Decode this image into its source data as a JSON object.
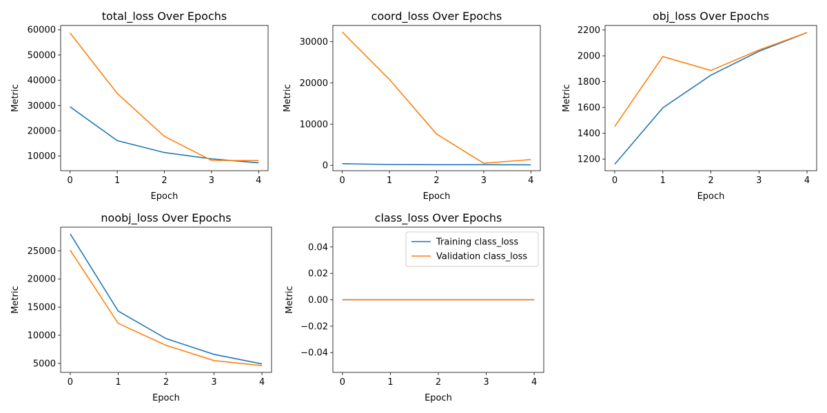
{
  "colors": {
    "training": "#1f77b4",
    "validation": "#ff7f0e",
    "axes": "#000000"
  },
  "chart_data": [
    {
      "type": "line",
      "title": "total_loss Over Epochs",
      "xlabel": "Epoch",
      "ylabel": "Metric",
      "x": [
        0,
        1,
        2,
        3,
        4
      ],
      "xticks": [
        0,
        1,
        2,
        3,
        4
      ],
      "ylim": [
        4200,
        61700
      ],
      "yticks": [
        10000,
        20000,
        30000,
        40000,
        50000,
        60000
      ],
      "series": [
        {
          "values": [
            29500,
            16100,
            11400,
            8900,
            7300
          ],
          "color": "#1f77b4"
        },
        {
          "values": [
            58700,
            34800,
            17800,
            8300,
            8200
          ],
          "color": "#ff7f0e"
        }
      ],
      "legend": null
    },
    {
      "type": "line",
      "title": "coord_loss Over Epochs",
      "xlabel": "Epoch",
      "ylabel": "Metric",
      "x": [
        0,
        1,
        2,
        3,
        4
      ],
      "xticks": [
        0,
        1,
        2,
        3,
        4
      ],
      "ylim": [
        -1300,
        33900
      ],
      "yticks": [
        0,
        10000,
        20000,
        30000
      ],
      "series": [
        {
          "values": [
            400,
            200,
            150,
            150,
            120
          ],
          "color": "#1f77b4"
        },
        {
          "values": [
            32300,
            20800,
            7600,
            500,
            1400
          ],
          "color": "#ff7f0e"
        }
      ],
      "legend": null
    },
    {
      "type": "line",
      "title": "obj_loss Over Epochs",
      "xlabel": "Epoch",
      "ylabel": "Metric",
      "x": [
        0,
        1,
        2,
        3,
        4
      ],
      "xticks": [
        0,
        1,
        2,
        3,
        4
      ],
      "ylim": [
        1110,
        2235
      ],
      "yticks": [
        1200,
        1400,
        1600,
        1800,
        2000,
        2200
      ],
      "series": [
        {
          "values": [
            1160,
            1597,
            1850,
            2035,
            2180
          ],
          "color": "#1f77b4"
        },
        {
          "values": [
            1453,
            1994,
            1887,
            2045,
            2180
          ],
          "color": "#ff7f0e"
        }
      ],
      "legend": null
    },
    {
      "type": "line",
      "title": "noobj_loss Over Epochs",
      "xlabel": "Epoch",
      "ylabel": "Metric",
      "x": [
        0,
        1,
        2,
        3,
        4
      ],
      "xticks": [
        0,
        1,
        2,
        3,
        4
      ],
      "ylim": [
        3400,
        29200
      ],
      "yticks": [
        5000,
        10000,
        15000,
        20000,
        25000
      ],
      "series": [
        {
          "values": [
            28000,
            14300,
            9400,
            6600,
            4900
          ],
          "color": "#1f77b4"
        },
        {
          "values": [
            25100,
            12100,
            8200,
            5500,
            4600
          ],
          "color": "#ff7f0e"
        }
      ],
      "legend": null
    },
    {
      "type": "line",
      "title": "class_loss Over Epochs",
      "xlabel": "Epoch",
      "ylabel": "Metric",
      "x": [
        0,
        1,
        2,
        3,
        4
      ],
      "xticks": [
        0,
        1,
        2,
        3,
        4
      ],
      "ylim": [
        -0.055,
        0.055
      ],
      "yticks": [
        -0.04,
        -0.02,
        0.0,
        0.02,
        0.04
      ],
      "yticklabels": [
        "−0.04",
        "−0.02",
        "0.00",
        "0.02",
        "0.04"
      ],
      "series": [
        {
          "name": "Training class_loss",
          "values": [
            0,
            0,
            0,
            0,
            0
          ],
          "color": "#1f77b4"
        },
        {
          "name": "Validation class_loss",
          "values": [
            0,
            0,
            0,
            0,
            0
          ],
          "color": "#ff7f0e"
        }
      ],
      "legend": "upper right"
    }
  ]
}
